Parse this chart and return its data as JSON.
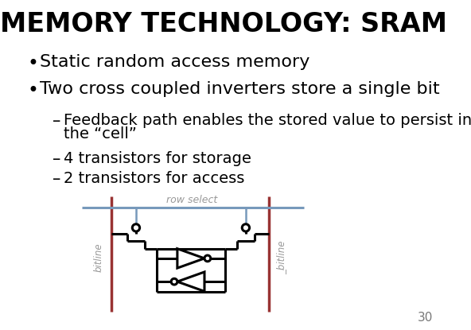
{
  "title": "MEMORY TECHNOLOGY: SRAM",
  "bullet1": "Static random access memory",
  "bullet2": "Two cross coupled inverters store a single bit",
  "sub1_line1": "Feedback path enables the stored value to persist in",
  "sub1_line2": "the “cell”",
  "sub2": "4 transistors for storage",
  "sub3": "2 transistors for access",
  "label_row_select": "row select",
  "label_bitline": "bitline",
  "label_nbitline": "_bitline",
  "page_number": "30",
  "bg_color": "#ffffff",
  "title_color": "#000000",
  "text_color": "#000000",
  "bitline_color": "#993333",
  "rowselect_color": "#7799bb",
  "circuit_color": "#000000",
  "gate_line_color": "#7799bb",
  "label_color": "#999999"
}
